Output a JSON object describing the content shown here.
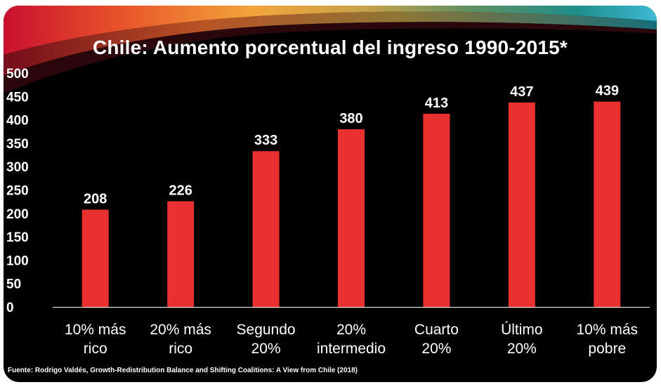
{
  "chart_data": {
    "type": "bar",
    "title": "Chile: Aumento porcentual del ingreso 1990-2015*",
    "categories": [
      [
        "10% más",
        "rico"
      ],
      [
        "20% más",
        "rico"
      ],
      [
        "Segundo",
        "20%"
      ],
      [
        "20%",
        "intermedio"
      ],
      [
        "Cuarto",
        "20%"
      ],
      [
        "Último",
        "20%"
      ],
      [
        "10% más",
        "pobre"
      ]
    ],
    "values": [
      208,
      226,
      333,
      380,
      413,
      437,
      439
    ],
    "data_labels": [
      "208",
      "226",
      "333",
      "380",
      "413",
      "437",
      "439"
    ],
    "yticks": [
      "0",
      "50",
      "100",
      "150",
      "200",
      "250",
      "300",
      "350",
      "400",
      "450",
      "500"
    ],
    "ylim": [
      0,
      500
    ],
    "xlabel": "",
    "ylabel": "",
    "grid": false,
    "legend": "none",
    "bar_color": "#e8312f",
    "background_color": "#000000",
    "text_color": "#ffffff",
    "source": "Fuente: Rodrigo Valdés, Growth-Redistribution Balance and Shifting Coalitions: A View from Chile (2018)"
  }
}
